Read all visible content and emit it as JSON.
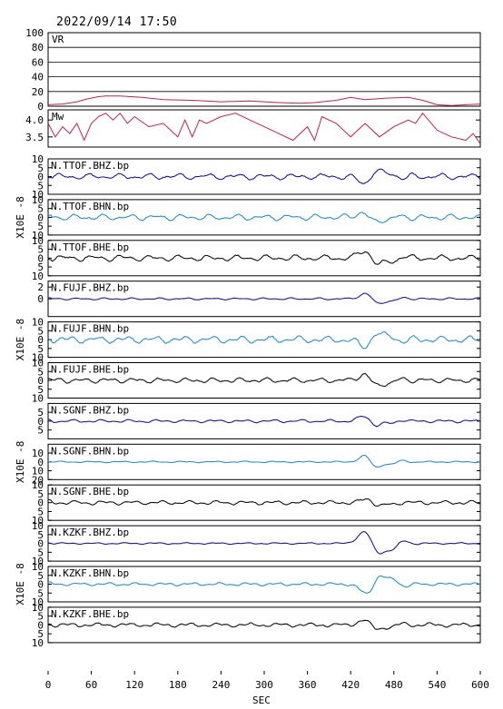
{
  "header": {
    "datetime": "2022/09/14 17:50"
  },
  "chart_data": {
    "type": "line",
    "xlabel": "SEC",
    "xlim": [
      0,
      600
    ],
    "xticks": [
      0,
      60,
      120,
      180,
      240,
      300,
      360,
      420,
      480,
      540,
      600
    ],
    "colors": {
      "vr": "#cc1f4a",
      "mw": "#cc1f4a",
      "bhz": "#1a1a99",
      "bhn": "#2a8fd0",
      "bhe": "#111111"
    },
    "vr": {
      "label": "VR",
      "ylim": [
        0,
        100
      ],
      "yticks": [
        0,
        20,
        40,
        60,
        80,
        100
      ],
      "x": [
        0,
        20,
        40,
        55,
        70,
        80,
        100,
        130,
        160,
        200,
        240,
        280,
        320,
        350,
        370,
        400,
        420,
        440,
        470,
        500,
        520,
        540,
        560,
        580,
        600
      ],
      "y": [
        2,
        3,
        6,
        10,
        13,
        14,
        14,
        12,
        9,
        8,
        6,
        7,
        5,
        4,
        5,
        8,
        12,
        9,
        11,
        12,
        8,
        2,
        1,
        2,
        3
      ]
    },
    "mw": {
      "label": "Mw",
      "ylim": [
        3.2,
        4.3
      ],
      "yticks": [
        3.5,
        4.0
      ],
      "ytick_labels": [
        "3.5",
        "4.0"
      ],
      "x": [
        0,
        10,
        20,
        30,
        40,
        50,
        60,
        70,
        80,
        90,
        100,
        110,
        120,
        140,
        160,
        180,
        190,
        200,
        210,
        220,
        240,
        260,
        280,
        300,
        320,
        340,
        360,
        370,
        380,
        400,
        420,
        440,
        460,
        480,
        500,
        510,
        520,
        540,
        560,
        580,
        590,
        600
      ],
      "y": [
        3.9,
        3.5,
        3.8,
        3.6,
        3.9,
        3.4,
        3.9,
        4.1,
        4.2,
        4.0,
        4.2,
        3.9,
        4.1,
        3.8,
        3.9,
        3.5,
        4.0,
        3.5,
        4.0,
        3.9,
        4.1,
        4.2,
        4.0,
        3.8,
        3.6,
        3.4,
        3.8,
        3.4,
        4.1,
        3.9,
        3.5,
        3.9,
        3.5,
        3.8,
        4.0,
        3.9,
        4.2,
        3.7,
        3.5,
        3.4,
        3.6,
        3.3
      ]
    },
    "panels": [
      {
        "name": "N.TTOF.BHZ.bp",
        "comp": "bhz",
        "ylim": [
          -10,
          10
        ],
        "yticks": [
          -10,
          -5,
          0,
          5,
          10
        ],
        "ytick_labels": [
          "10",
          "5",
          "0",
          "5",
          "10"
        ],
        "amp": 3,
        "peak": 5.5,
        "t0": 448,
        "w": 14,
        "sign": -1
      },
      {
        "name": "N.TTOF.BHN.bp",
        "comp": "bhn",
        "ylim": [
          -10,
          10
        ],
        "yticks": [
          -10,
          -5,
          0,
          5,
          10
        ],
        "ytick_labels": [
          "10",
          "5",
          "0",
          "5",
          "10"
        ],
        "amp": 3,
        "peak": 4,
        "t0": 445,
        "w": 14,
        "sign": 1
      },
      {
        "name": "N.TTOF.BHE.bp",
        "comp": "bhe",
        "ylim": [
          -10,
          10
        ],
        "yticks": [
          -10,
          -5,
          0,
          5,
          10
        ],
        "ytick_labels": [
          "10",
          "5",
          "0",
          "5",
          "10"
        ],
        "amp": 3,
        "peak": 6,
        "t0": 450,
        "w": 15,
        "sign": 1
      },
      {
        "name": "N.FUJF.BHZ.bp",
        "comp": "bhz",
        "ylim": [
          -3,
          3
        ],
        "yticks": [
          0,
          2
        ],
        "ytick_labels": [
          "0",
          "2"
        ],
        "amp": 0.3,
        "peak": 1.3,
        "t0": 450,
        "w": 14,
        "sign": 1
      },
      {
        "name": "N.FUJF.BHN.bp",
        "comp": "bhn",
        "ylim": [
          -10,
          10
        ],
        "yticks": [
          -10,
          -5,
          0,
          5,
          10
        ],
        "ytick_labels": [
          "10",
          "5",
          "0",
          "5",
          "10"
        ],
        "amp": 3.5,
        "peak": 6,
        "t0": 448,
        "w": 14,
        "sign": -1
      },
      {
        "name": "N.FUJF.BHE.bp",
        "comp": "bhe",
        "ylim": [
          -10,
          10
        ],
        "yticks": [
          -10,
          -5,
          0,
          5,
          10
        ],
        "ytick_labels": [
          "10",
          "5",
          "0",
          "5",
          "10"
        ],
        "amp": 2.5,
        "peak": 5,
        "t0": 448,
        "w": 14,
        "sign": 1
      },
      {
        "name": "N.SGNF.BHZ.bp",
        "comp": "bhz",
        "ylim": [
          -10,
          10
        ],
        "yticks": [
          -5,
          0,
          5
        ],
        "ytick_labels": [
          "5",
          "0",
          "5"
        ],
        "amp": 1.5,
        "peak": 4,
        "t0": 448,
        "w": 14,
        "sign": 1
      },
      {
        "name": "N.SGNF.BHN.bp",
        "comp": "bhn",
        "ylim": [
          -20,
          20
        ],
        "yticks": [
          -20,
          -10,
          0,
          10
        ],
        "ytick_labels": [
          "20",
          "10",
          "0",
          "10"
        ],
        "amp": 1.5,
        "peak": 10,
        "t0": 448,
        "w": 13,
        "sign": 1
      },
      {
        "name": "N.SGNF.BHE.bp",
        "comp": "bhe",
        "ylim": [
          -10,
          10
        ],
        "yticks": [
          -10,
          -5,
          0,
          5,
          10
        ],
        "ytick_labels": [
          "10",
          "5",
          "0",
          "5",
          "10"
        ],
        "amp": 2,
        "peak": 3,
        "t0": 452,
        "w": 14,
        "sign": 1
      },
      {
        "name": "N.KZKF.BHZ.bp",
        "comp": "bhz",
        "ylim": [
          -10,
          10
        ],
        "yticks": [
          -10,
          -5,
          0,
          5,
          10
        ],
        "ytick_labels": [
          "10",
          "5",
          "0",
          "5",
          "10"
        ],
        "amp": 0.8,
        "peak": 9.5,
        "t0": 450,
        "w": 16,
        "sign": 1
      },
      {
        "name": "N.KZKF.BHN.bp",
        "comp": "bhn",
        "ylim": [
          -10,
          10
        ],
        "yticks": [
          -10,
          -5,
          0,
          5,
          10
        ],
        "ytick_labels": [
          "10",
          "5",
          "0",
          "5",
          "10"
        ],
        "amp": 1.5,
        "peak": 8,
        "t0": 452,
        "w": 15,
        "sign": -1
      },
      {
        "name": "N.KZKF.BHE.bp",
        "comp": "bhe",
        "ylim": [
          -10,
          10
        ],
        "yticks": [
          -10,
          -5,
          0,
          5,
          10
        ],
        "ytick_labels": [
          "10",
          "5",
          "0",
          "5",
          "10"
        ],
        "amp": 2,
        "peak": 4,
        "t0": 448,
        "w": 14,
        "sign": 1
      }
    ],
    "scale_labels": [
      {
        "text": "X10E -8",
        "panels": [
          2,
          4
        ]
      },
      {
        "text": "X10E -8",
        "panels": [
          5,
          7
        ]
      },
      {
        "text": "X10E -8",
        "panels": [
          8,
          10
        ]
      },
      {
        "text": "X10E -8",
        "panels": [
          11,
          13
        ]
      }
    ]
  }
}
